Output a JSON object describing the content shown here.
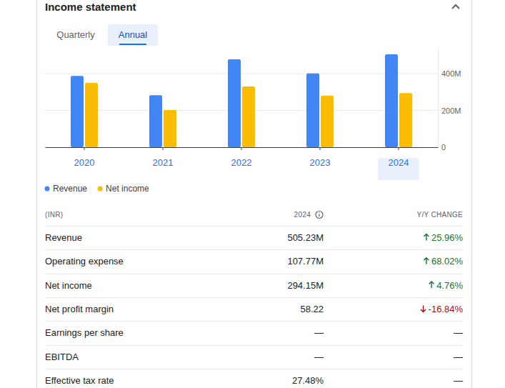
{
  "header": {
    "title": "Income statement"
  },
  "tabs": {
    "items": [
      "Quarterly",
      "Annual"
    ],
    "selected": "Annual"
  },
  "chart_data": {
    "type": "bar",
    "categories": [
      "2020",
      "2021",
      "2022",
      "2023",
      "2024"
    ],
    "series": [
      {
        "name": "Revenue",
        "color": "#4285f4",
        "values": [
          388,
          283,
          478,
          401,
          505.23
        ]
      },
      {
        "name": "Net income",
        "color": "#fbbc04",
        "values": [
          350,
          202,
          330,
          281,
          294.15
        ]
      }
    ],
    "ylim": [
      0,
      540
    ],
    "yticks": [
      {
        "value": 400,
        "label": "400M"
      },
      {
        "value": 200,
        "label": "200M"
      },
      0
    ],
    "grid": true,
    "legend": "bottom"
  },
  "table": {
    "columns": [
      "(INR)",
      "2024",
      "Y/Y CHANGE"
    ],
    "rows": [
      [
        "Revenue",
        "505.23M",
        "25.96%"
      ],
      [
        "Operating expense",
        "107.77M",
        "68.02%"
      ],
      [
        "Net income",
        "294.15M",
        "4.76%"
      ],
      [
        "Net profit margin",
        "58.22",
        "-16.84%"
      ],
      [
        "Earnings per share",
        "—",
        "—"
      ],
      [
        "EBITDA",
        "—",
        "—"
      ],
      [
        "Effective tax rate",
        "27.48%",
        "—"
      ]
    ]
  }
}
